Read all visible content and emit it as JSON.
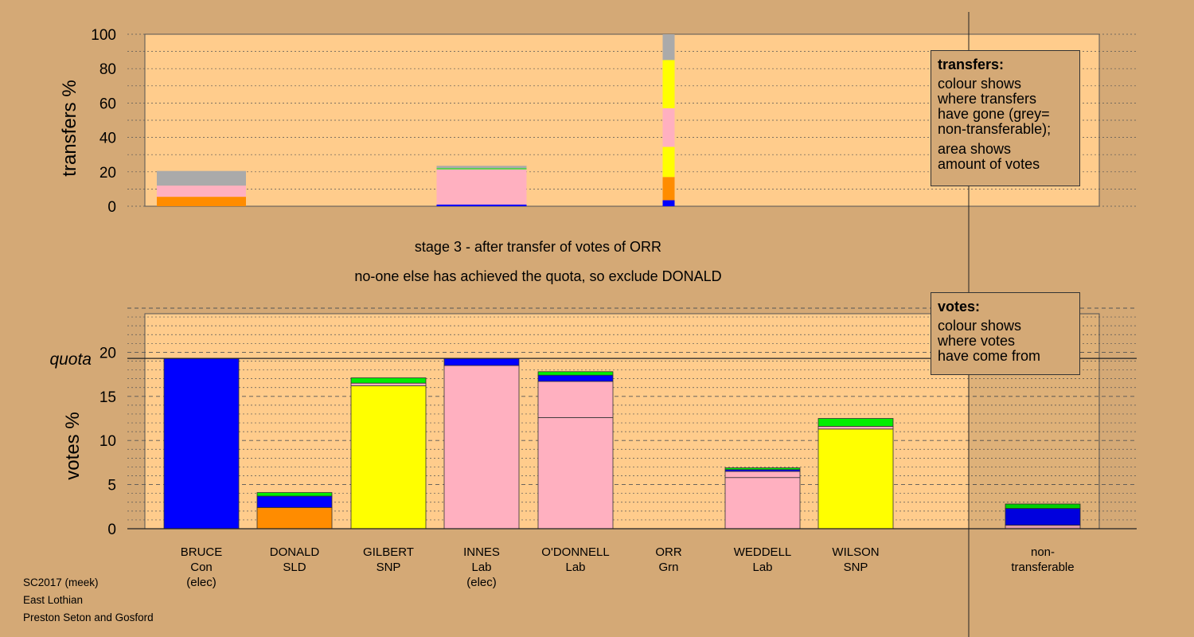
{
  "header": {
    "stage_line": "stage 3 - after transfer of votes of ORR",
    "action_line": "no-one else has achieved the quota, so exclude DONALD"
  },
  "transfers_legend": {
    "title": "transfers:",
    "lines": [
      "colour shows",
      "where transfers",
      "have gone (grey=",
      "non-transferable);",
      "area shows",
      "amount of votes"
    ]
  },
  "votes_legend": {
    "title": "votes:",
    "lines": [
      "colour shows",
      "where votes",
      "have come from"
    ]
  },
  "footer": {
    "line1": "SC2017 (meek)",
    "line2": "East Lothian",
    "line3": "Preston Seton and Gosford"
  },
  "colors": {
    "background": "#d4a976",
    "plot_bg": "#ffcc8c",
    "Con": "#0000ff",
    "SLD": "#ff8c00",
    "SNP": "#ffff00",
    "Lab": "#ffb0c0",
    "Grn": "#00ee00",
    "nontransferable": "#aaaaaa"
  },
  "chart_data": [
    {
      "type": "bar",
      "stacked": true,
      "ylabel": "transfers %",
      "ylim": [
        0,
        100
      ],
      "yticks": [
        0,
        20,
        40,
        60,
        80,
        100
      ],
      "grid": true,
      "legend_position": "top-right",
      "bars": [
        {
          "category": "BRUCE",
          "segments": [
            {
              "party": "SLD",
              "value": 5.5
            },
            {
              "party": "Lab",
              "value": 6.5
            },
            {
              "party": "nontransferable",
              "value": 8.5
            }
          ]
        },
        {
          "category": "INNES",
          "segments": [
            {
              "party": "Con",
              "value": 1
            },
            {
              "party": "Lab",
              "value": 20.5
            },
            {
              "party": "Grn",
              "value": 0.5
            },
            {
              "party": "nontransferable",
              "value": 1.5
            }
          ]
        },
        {
          "category": "ORR",
          "segments": [
            {
              "party": "Con",
              "value": 3.5
            },
            {
              "party": "SLD",
              "value": 13.5
            },
            {
              "party": "SNP",
              "value": 17.5
            },
            {
              "party": "Lab",
              "value": 22.5
            },
            {
              "party": "SNP",
              "value": 28
            },
            {
              "party": "nontransferable",
              "value": 15
            }
          ]
        }
      ]
    },
    {
      "type": "bar",
      "stacked": true,
      "ylabel": "votes %",
      "ylim": [
        0,
        25
      ],
      "yticks": [
        0,
        5,
        10,
        15,
        20
      ],
      "quota": 19.3,
      "quota_label": "quota",
      "grid": true,
      "legend_position": "top-right",
      "categories": [
        {
          "name": "BRUCE",
          "party": "Con",
          "note": "(elec)"
        },
        {
          "name": "DONALD",
          "party": "SLD",
          "note": ""
        },
        {
          "name": "GILBERT",
          "party": "SNP",
          "note": ""
        },
        {
          "name": "INNES",
          "party": "Lab",
          "note": "(elec)"
        },
        {
          "name": "O'DONNELL",
          "party": "Lab",
          "note": ""
        },
        {
          "name": "ORR",
          "party": "Grn",
          "note": ""
        },
        {
          "name": "WEDDELL",
          "party": "Lab",
          "note": ""
        },
        {
          "name": "WILSON",
          "party": "SNP",
          "note": ""
        },
        {
          "name": "non-",
          "party": "transferable",
          "note": ""
        }
      ],
      "bars": [
        [
          {
            "party": "Con",
            "value": 19.3
          }
        ],
        [
          {
            "party": "SLD",
            "value": 2.4
          },
          {
            "party": "Con",
            "value": 1.3
          },
          {
            "party": "Grn",
            "value": 0.4
          }
        ],
        [
          {
            "party": "SNP",
            "value": 16.2
          },
          {
            "party": "Lab",
            "value": 0.3
          },
          {
            "party": "Grn",
            "value": 0.6
          }
        ],
        [
          {
            "party": "Lab",
            "value": 18.5
          },
          {
            "party": "Con",
            "value": 0.8
          }
        ],
        [
          {
            "party": "Lab",
            "value": 12.6
          },
          {
            "party": "Lab",
            "value": 4.1
          },
          {
            "party": "Con",
            "value": 0.7
          },
          {
            "party": "Grn",
            "value": 0.4
          }
        ],
        [],
        [
          {
            "party": "Lab",
            "value": 5.8
          },
          {
            "party": "Lab",
            "value": 0.7
          },
          {
            "party": "Con",
            "value": 0.2
          },
          {
            "party": "Grn",
            "value": 0.2
          }
        ],
        [
          {
            "party": "SNP",
            "value": 11.3
          },
          {
            "party": "Lab",
            "value": 0.3
          },
          {
            "party": "Grn",
            "value": 0.9
          }
        ],
        [
          {
            "party": "Lab",
            "value": 0.4
          },
          {
            "party": "Con",
            "value": 1.9
          },
          {
            "party": "Grn",
            "value": 0.5
          }
        ]
      ]
    }
  ]
}
